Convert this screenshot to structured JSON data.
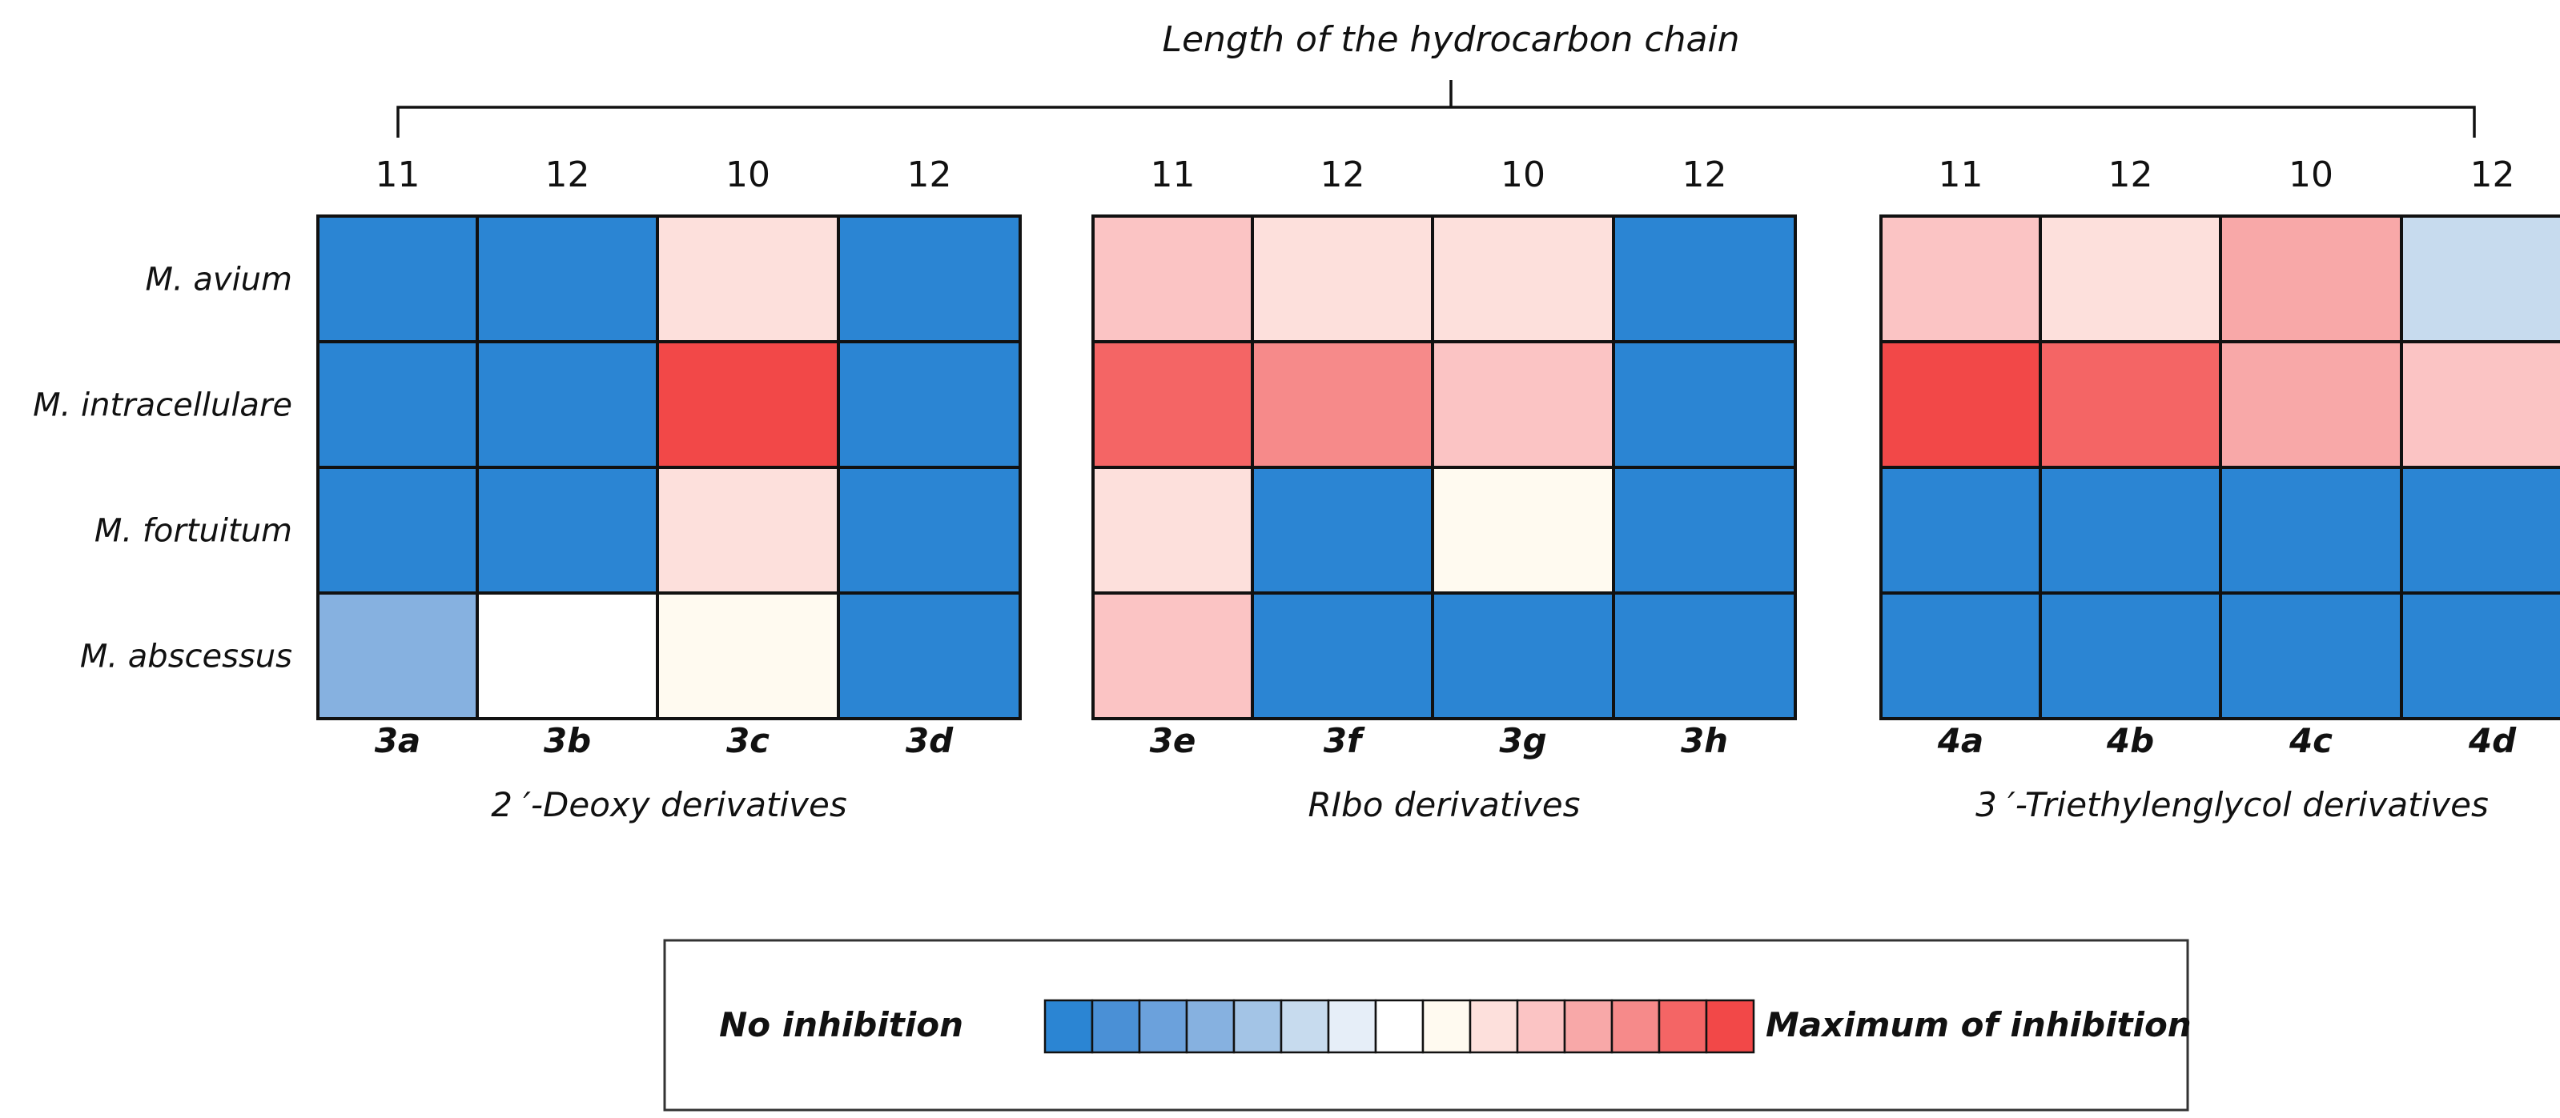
{
  "chart_data": {
    "type": "heatmap",
    "title": "Length of the hydrocarbon chain",
    "rows": [
      "M. avium",
      "M. intracellulare",
      "M. fortuitum",
      "M. abscessus"
    ],
    "scale": {
      "min_label": "No inhibition",
      "max_label": "Maximum of inhibition",
      "levels": 15,
      "colors": [
        "#2b85d3",
        "#4a90d6",
        "#6ba1dc",
        "#86b1e0",
        "#a3c4e6",
        "#c7dbee",
        "#e6eef8",
        "#ffffff",
        "#fffaf0",
        "#fde0dc",
        "#fbc4c4",
        "#f8a8a8",
        "#f68a8a",
        "#f46565",
        "#f24848"
      ]
    },
    "groups": [
      {
        "label": "2 ′-Deoxy derivatives",
        "compounds": [
          "3a",
          "3b",
          "3c",
          "3d"
        ],
        "chain_lengths": [
          "11",
          "12",
          "10",
          "12"
        ],
        "values": [
          [
            0,
            0,
            9,
            0
          ],
          [
            0,
            0,
            14,
            0
          ],
          [
            0,
            0,
            9,
            0
          ],
          [
            3,
            7,
            8,
            0
          ]
        ]
      },
      {
        "label": "RIbo derivatives",
        "compounds": [
          "3e",
          "3f",
          "3g",
          "3h"
        ],
        "chain_lengths": [
          "11",
          "12",
          "10",
          "12"
        ],
        "values": [
          [
            10,
            9,
            9,
            0
          ],
          [
            13,
            12,
            10,
            0
          ],
          [
            9,
            0,
            8,
            0
          ],
          [
            10,
            0,
            0,
            0
          ]
        ]
      },
      {
        "label": "3 ′-Triethylenglycol derivatives",
        "compounds": [
          "4a",
          "4b",
          "4c",
          "4d"
        ],
        "chain_lengths": [
          "11",
          "12",
          "10",
          "12"
        ],
        "values": [
          [
            10,
            9,
            11,
            5
          ],
          [
            14,
            13,
            11,
            10
          ],
          [
            0,
            0,
            0,
            0
          ],
          [
            0,
            0,
            0,
            0
          ]
        ]
      }
    ]
  }
}
